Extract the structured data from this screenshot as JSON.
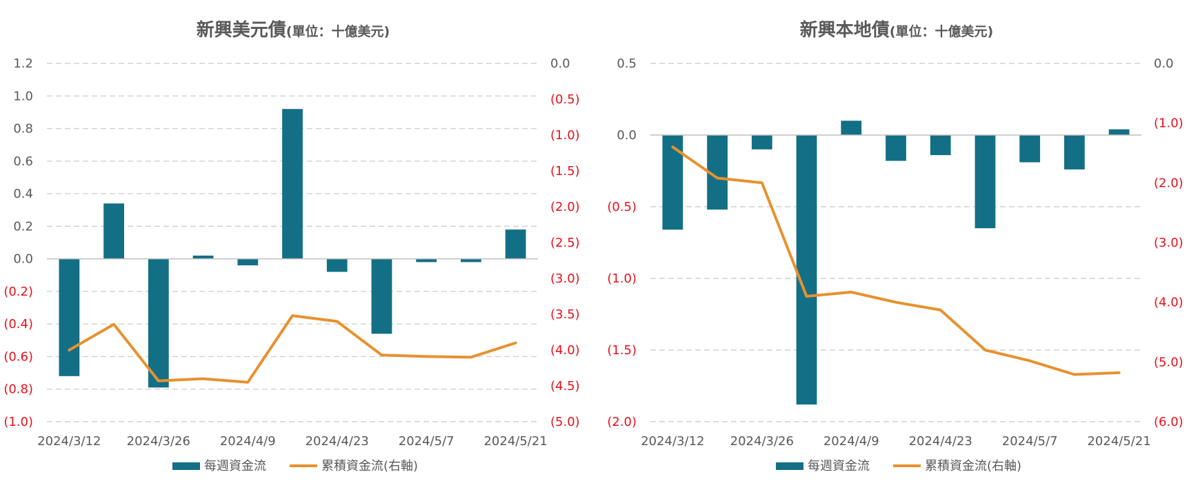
{
  "colors": {
    "bar": "#136f86",
    "line": "#e8912e",
    "negative_tick": "#e8101b",
    "text": "#595959",
    "grid": "#d0d0d0"
  },
  "chart_data": [
    {
      "type": "bar",
      "title": "新興美元債",
      "subtitle": "(單位：十億美元)",
      "x": [
        "2024/3/12",
        "2024/3/19",
        "2024/3/26",
        "2024/4/2",
        "2024/4/9",
        "2024/4/16",
        "2024/4/23",
        "2024/4/30",
        "2024/5/7",
        "2024/5/14",
        "2024/5/21"
      ],
      "x_tick_labels": [
        "2024/3/12",
        "2024/3/26",
        "2024/4/9",
        "2024/4/23",
        "2024/5/7",
        "2024/5/21"
      ],
      "y_left_ticks": [
        "1.2",
        "1.0",
        "0.8",
        "0.6",
        "0.4",
        "0.2",
        "0.0",
        "(0.2)",
        "(0.4)",
        "(0.6)",
        "(0.8)",
        "(1.0)"
      ],
      "y_right_ticks": [
        "0.0",
        "(0.5)",
        "(1.0)",
        "(1.5)",
        "(2.0)",
        "(2.5)",
        "(3.0)",
        "(3.5)",
        "(4.0)",
        "(4.5)",
        "(5.0)"
      ],
      "ylim_left": [
        -1.0,
        1.2
      ],
      "ylim_right": [
        -5.0,
        0.0
      ],
      "grid": true,
      "legend_position": "bottom",
      "series": [
        {
          "name": "每週資金流",
          "type": "bar",
          "axis": "left",
          "values": [
            -0.72,
            0.34,
            -0.79,
            0.02,
            -0.04,
            0.92,
            -0.08,
            -0.46,
            -0.02,
            -0.02,
            0.18
          ]
        },
        {
          "name": "累積資金流(右軸)",
          "type": "line",
          "axis": "right",
          "values": [
            -4.0,
            -3.64,
            -4.43,
            -4.4,
            -4.45,
            -3.52,
            -3.6,
            -4.07,
            -4.09,
            -4.1,
            -3.9
          ]
        }
      ]
    },
    {
      "type": "bar",
      "title": "新興本地債",
      "subtitle": "(單位：十億美元)",
      "x": [
        "2024/3/12",
        "2024/3/19",
        "2024/3/26",
        "2024/4/2",
        "2024/4/9",
        "2024/4/16",
        "2024/4/23",
        "2024/4/30",
        "2024/5/7",
        "2024/5/14",
        "2024/5/21"
      ],
      "x_tick_labels": [
        "2024/3/12",
        "2024/3/26",
        "2024/4/9",
        "2024/4/23",
        "2024/5/7",
        "2024/5/21"
      ],
      "y_left_ticks": [
        "0.5",
        "0.0",
        "(0.5)",
        "(1.0)",
        "(1.5)",
        "(2.0)"
      ],
      "y_right_ticks": [
        "0.0",
        "(1.0)",
        "(2.0)",
        "(3.0)",
        "(4.0)",
        "(5.0)",
        "(6.0)"
      ],
      "ylim_left": [
        -2.0,
        0.5
      ],
      "ylim_right": [
        -6.0,
        0.0
      ],
      "grid": true,
      "legend_position": "bottom",
      "series": [
        {
          "name": "每週資金流",
          "type": "bar",
          "axis": "left",
          "values": [
            -0.66,
            -0.52,
            -0.1,
            -1.88,
            0.1,
            -0.18,
            -0.14,
            -0.65,
            -0.19,
            -0.24,
            0.04
          ]
        },
        {
          "name": "累積資金流(右軸)",
          "type": "line",
          "axis": "right",
          "values": [
            -1.4,
            -1.92,
            -2.0,
            -3.9,
            -3.83,
            -4.0,
            -4.13,
            -4.8,
            -4.98,
            -5.21,
            -5.18
          ]
        }
      ]
    }
  ]
}
